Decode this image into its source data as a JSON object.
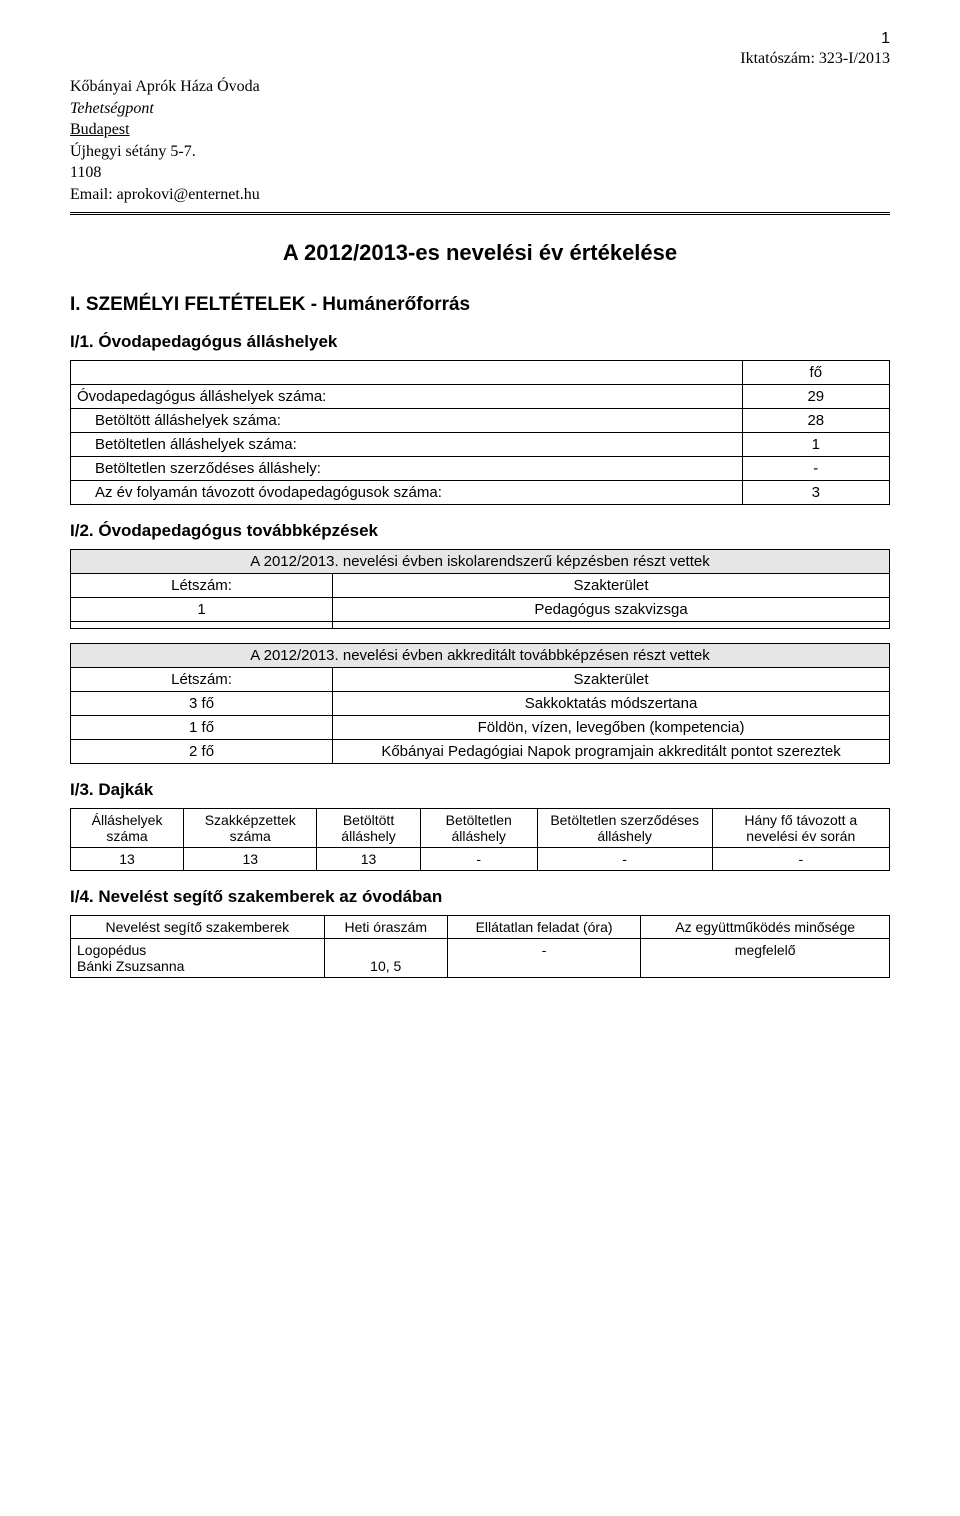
{
  "page_number": "1",
  "reference": "Iktatószám:  323-I/2013",
  "letterhead": {
    "line1": "Kőbányai Aprók Háza Óvoda",
    "line2": "Tehetségpont",
    "line3": "Budapest",
    "line4": "Újhegyi sétány 5-7.",
    "line5": "1108",
    "line6": "Email: aprokovi@enternet.hu"
  },
  "main_title": "A 2012/2013-es nevelési év értékelése",
  "section_I": "I.    SZEMÉLYI FELTÉTELEK - Humánerőforrás",
  "sub_I1": "I/1. Óvodapedagógus álláshelyek",
  "table_I1": {
    "header_right": "fő",
    "rows": [
      {
        "label": "Óvodapedagógus álláshelyek száma:",
        "value": "29"
      },
      {
        "label": "Betöltött álláshelyek száma:",
        "value": "28",
        "indent": true
      },
      {
        "label": "Betöltetlen álláshelyek száma:",
        "value": "1",
        "indent": true
      },
      {
        "label": "Betöltetlen szerződéses álláshely:",
        "value": "-",
        "indent": true
      },
      {
        "label": "Az év folyamán távozott óvodapedagógusok száma:",
        "value": "3",
        "indent": true
      }
    ]
  },
  "sub_I2": "I/2. Óvodapedagógus továbbképzések",
  "table_I2a": {
    "title": "A 2012/2013. nevelési évben iskolarendszerű képzésben részt vettek",
    "col1": "Létszám:",
    "col2": "Szakterület",
    "row1_c1": "1",
    "row1_c2": "Pedagógus szakvizsga"
  },
  "table_I2b": {
    "title": "A 2012/2013. nevelési évben akkreditált továbbképzésen részt vettek",
    "col1": "Létszám:",
    "col2": "Szakterület",
    "rows": [
      {
        "c1": "3 fő",
        "c2": "Sakkoktatás módszertana"
      },
      {
        "c1": "1 fő",
        "c2": "Földön, vízen, levegőben (kompetencia)"
      },
      {
        "c1": "2 fő",
        "c2": "Kőbányai Pedagógiai Napok programjain akkreditált pontot szereztek"
      }
    ]
  },
  "sub_I3": "I/3. Dajkák",
  "table_I3": {
    "headers": [
      "Álláshelyek száma",
      "Szakképzettek száma",
      "Betöltött álláshely",
      "Betöltetlen álláshely",
      "Betöltetlen szerződéses álláshely",
      "Hány fő távozott a nevelési év során"
    ],
    "row": [
      "13",
      "13",
      "13",
      "-",
      "-",
      "-"
    ]
  },
  "sub_I4": "I/4. Nevelést segítő szakemberek az óvodában",
  "table_I4": {
    "headers": [
      "Nevelést segítő szakemberek",
      "Heti óraszám",
      "Ellátatlan feladat (óra)",
      "Az együttműködés minősége"
    ],
    "row": {
      "c1a": "Logopédus",
      "c1b": "Bánki Zsuzsanna",
      "c2": "10, 5",
      "c3": "-",
      "c4": "megfelelő"
    }
  }
}
